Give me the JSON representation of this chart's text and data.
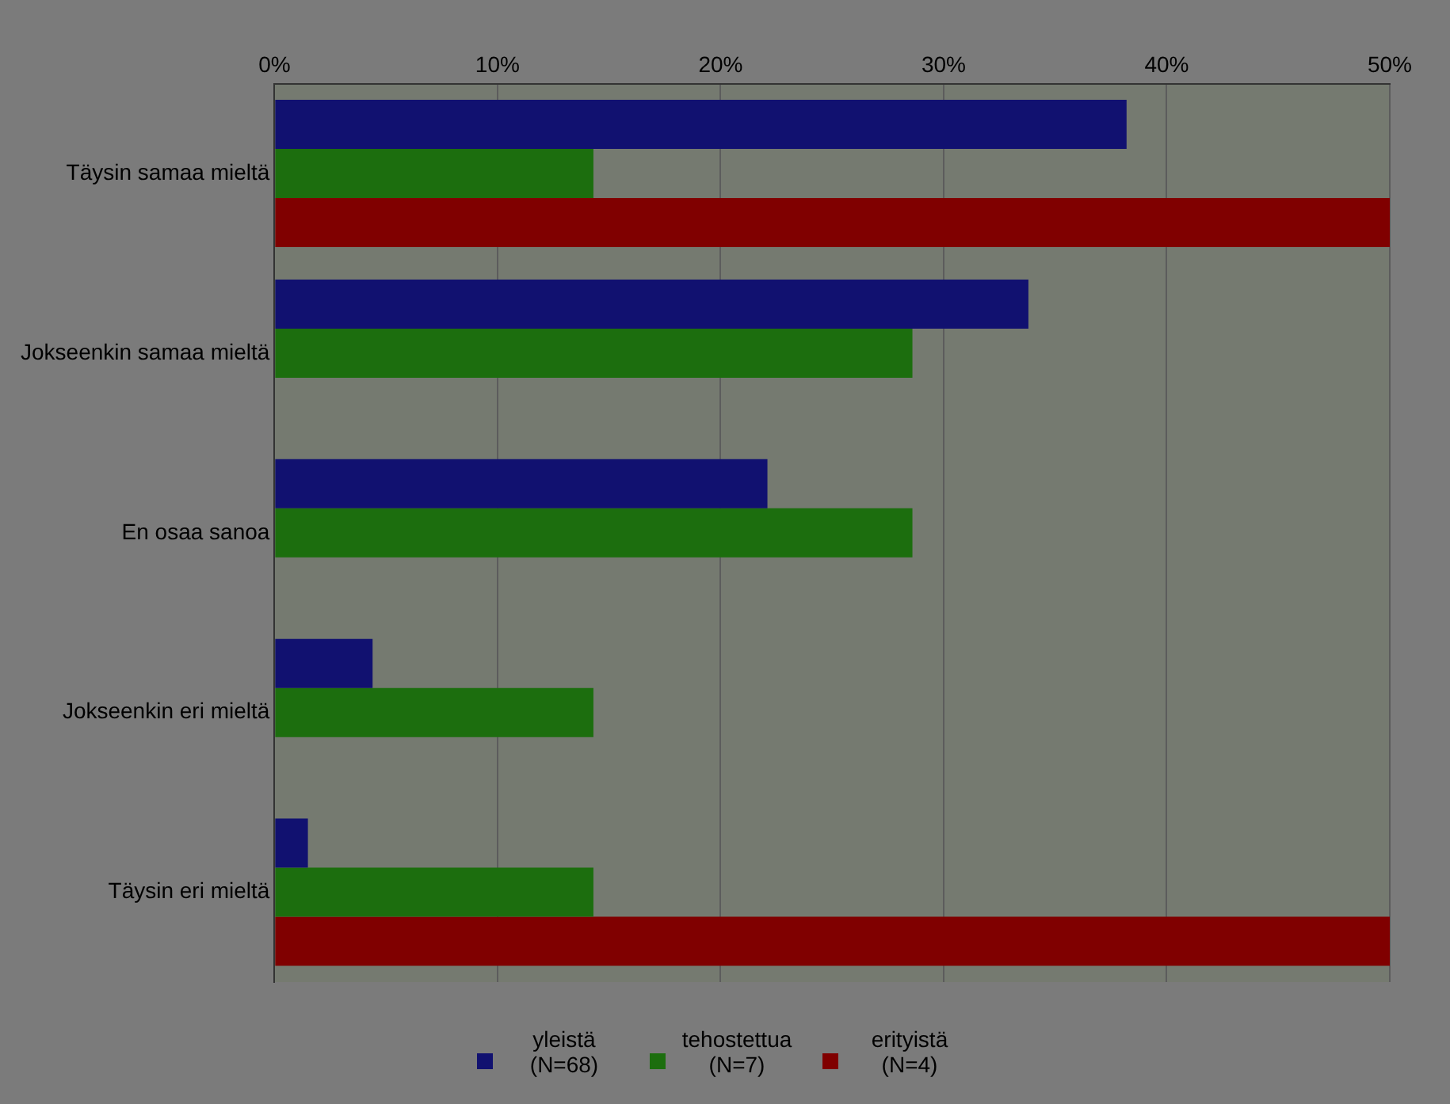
{
  "chart_data": {
    "type": "bar",
    "orientation": "horizontal",
    "categories": [
      "Täysin samaa mieltä",
      "Jokseenkin samaa mieltä",
      "En osaa sanoa",
      "Jokseenkin eri mieltä",
      "Täysin eri mieltä"
    ],
    "series": [
      {
        "name": "yleistä (N=68)",
        "color": "#111170",
        "values": [
          38.2,
          33.8,
          22.1,
          4.4,
          1.5
        ]
      },
      {
        "name": "tehostettua (N=7)",
        "color": "#1c6e0e",
        "values": [
          14.3,
          28.6,
          28.6,
          14.3,
          14.3
        ]
      },
      {
        "name": "erityistä (N=4)",
        "color": "#800000",
        "values": [
          50,
          0,
          0,
          0,
          50
        ]
      }
    ],
    "xlim": [
      0,
      50
    ],
    "xticks": [
      {
        "value": 0,
        "label": "0%"
      },
      {
        "value": 10,
        "label": "10%"
      },
      {
        "value": 20,
        "label": "20%"
      },
      {
        "value": 30,
        "label": "30%"
      },
      {
        "value": 40,
        "label": "40%"
      },
      {
        "value": 50,
        "label": "50%"
      }
    ],
    "grid": "x",
    "legend": "bottom"
  }
}
